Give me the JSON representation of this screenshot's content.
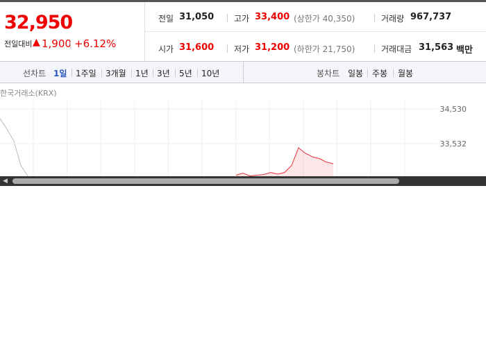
{
  "quote": {
    "price": "32,950",
    "change_label": "전일대비",
    "change": "1,900",
    "change_rate": "+6.12%"
  },
  "stats": [
    [
      {
        "label": "전일",
        "value": "31,050"
      },
      {
        "label": "고가",
        "value": "33,400",
        "note": "(상한가 40,350)"
      },
      {
        "label": "거래량",
        "value": "967,737"
      }
    ],
    [
      {
        "label": "시가",
        "value": "31,600"
      },
      {
        "label": "저가",
        "value": "31,200",
        "note": "(하한가 21,750)"
      },
      {
        "label": "거래대금",
        "value": "31,563",
        "unit": "백만"
      }
    ]
  ],
  "tabs": {
    "line_label": "선차트",
    "line_periods": [
      "1일",
      "1주일",
      "3개월",
      "1년",
      "3년",
      "5년",
      "10년"
    ],
    "selected": 0,
    "candle_label": "봉차트",
    "candle_periods": [
      "일봉",
      "주봉",
      "월봉"
    ]
  },
  "chart_data": {
    "type": "line",
    "source": "한국거래소(KRX)",
    "ylim": [
      32590,
      35270
    ],
    "yticks": [
      {
        "value": 34530,
        "label": "34,530"
      },
      {
        "value": 33532,
        "label": "33,532"
      }
    ],
    "grid": true,
    "series": [
      {
        "color": "#bbbbbb",
        "values": [
          34250,
          33950,
          33600,
          32900,
          32600,
          null,
          null,
          null,
          null,
          null,
          null,
          null,
          null,
          null,
          null,
          null,
          null,
          null,
          null,
          null,
          null,
          null,
          null,
          null,
          null,
          null,
          null,
          null,
          null,
          null,
          null,
          null,
          null,
          null,
          null,
          null,
          null,
          null,
          null,
          null,
          null,
          null,
          null,
          null,
          null,
          null,
          null,
          null,
          null
        ]
      },
      {
        "color": "#e8323c",
        "values": [
          null,
          null,
          null,
          null,
          null,
          null,
          null,
          null,
          null,
          null,
          null,
          null,
          null,
          null,
          null,
          null,
          null,
          null,
          null,
          null,
          null,
          null,
          null,
          null,
          null,
          null,
          null,
          null,
          null,
          null,
          null,
          null,
          null,
          null,
          32620,
          32680,
          32600,
          32620,
          32640,
          32700,
          32650,
          32700,
          32900,
          33410,
          33250,
          33150,
          33100,
          33000,
          32950
        ]
      }
    ]
  }
}
